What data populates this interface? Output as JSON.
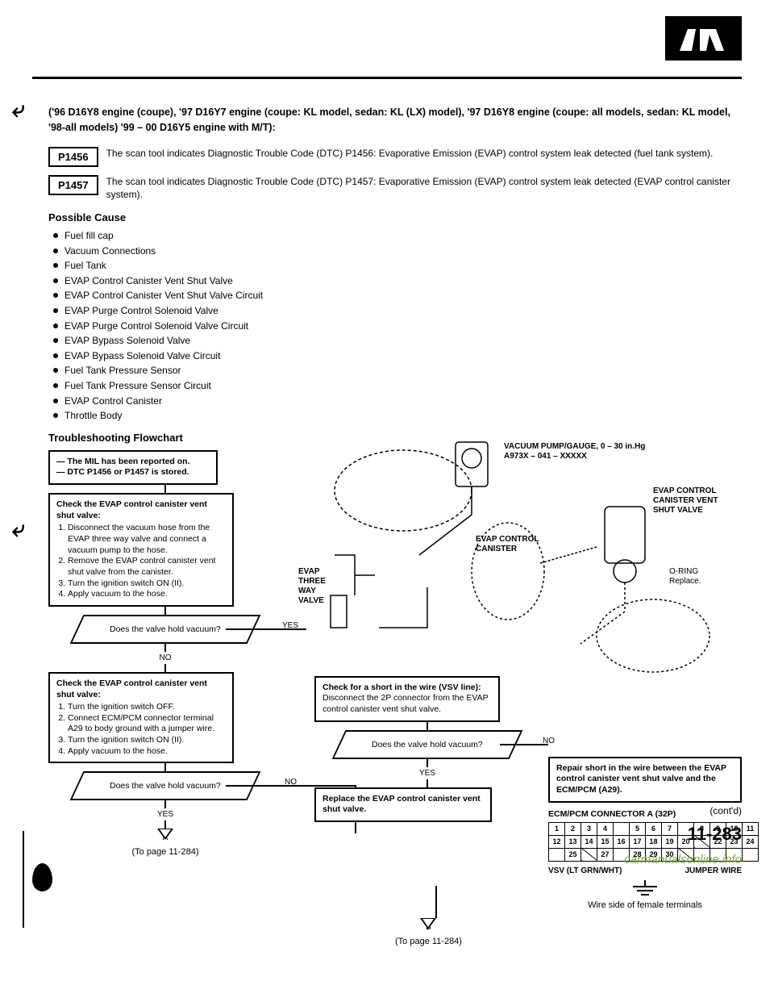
{
  "header": "('96 D16Y8 engine (coupe), '97 D16Y7 engine (coupe: KL model, sedan: KL (LX) model), '97 D16Y8 engine (coupe: all models, sedan: KL model, '98-all models) '99 – 00 D16Y5 engine with M/T):",
  "dtc1": {
    "code": "P1456",
    "desc": "The scan tool indicates Diagnostic Trouble Code (DTC) P1456: Evaporative Emission (EVAP) control system leak detected (fuel tank system)."
  },
  "dtc2": {
    "code": "P1457",
    "desc": "The scan tool indicates Diagnostic Trouble Code (DTC) P1457: Evaporative Emission (EVAP) control system leak detected (EVAP control canister system)."
  },
  "possible_title": "Possible Cause",
  "causes": [
    "Fuel fill cap",
    "Vacuum Connections",
    "Fuel Tank",
    "EVAP Control Canister Vent Shut Valve",
    "EVAP Control Canister Vent Shut Valve Circuit",
    "EVAP Purge Control Solenoid Valve",
    "EVAP Purge Control Solenoid Valve Circuit",
    "EVAP Bypass Solenoid Valve",
    "EVAP Bypass Solenoid Valve Circuit",
    "Fuel Tank Pressure Sensor",
    "Fuel Tank Pressure Sensor Circuit",
    "EVAP Control Canister",
    "Throttle Body"
  ],
  "flow_title": "Troubleshooting Flowchart",
  "box1": {
    "l1": "— The MIL has been reported on.",
    "l2": "— DTC P1456 or P1457 is stored."
  },
  "box2": {
    "title": "Check the EVAP control canister vent shut valve:",
    "s1": "Disconnect the vacuum hose from the EVAP three way valve and connect a vacuum pump to the hose.",
    "s2": "Remove the EVAP control canister vent shut valve from the canister.",
    "s3": "Turn the ignition switch ON (II).",
    "s4": "Apply vacuum to the hose."
  },
  "diamond1": "Does the valve hold vacuum?",
  "yes": "YES",
  "no": "NO",
  "box3": {
    "title": "Check the EVAP control canister vent shut valve:",
    "s1": "Turn the ignition switch OFF.",
    "s2": "Connect ECM/PCM connector terminal A29 to body ground with a jumper wire.",
    "s3": "Turn the ignition switch ON (II).",
    "s4": "Apply vacuum to the hose."
  },
  "diamond2": "Does the valve hold vacuum?",
  "to_page_a": "(To page 11-284)",
  "to_page_b": "(To page 11-284)",
  "box_r1": {
    "title": "Check for a short in the wire (VSV line):",
    "body": "Disconnect the 2P connector from the EVAP control canister vent shut valve."
  },
  "diamond_r": "Does the valve hold vacuum?",
  "box_r2": "Replace the EVAP control canister vent shut valve.",
  "box_rr": "Repair short in the wire between the EVAP control canister vent shut valve and the ECM/PCM (A29).",
  "conn_title": "ECM/PCM CONNECTOR A (32P)",
  "vsv_label": "VSV (LT GRN/WHT)",
  "jumper_label": "JUMPER WIRE",
  "wire_side": "Wire side of female terminals",
  "contd": "(cont'd)",
  "page_num": "11-283",
  "watermark": "carmanualsonline.info",
  "diag": {
    "vacuum": "VACUUM PUMP/GAUGE, 0 – 30 in.Hg A973X – 041 – XXXXX",
    "evap_three": "EVAP THREE WAY VALVE",
    "evap_canister": "EVAP CONTROL CANISTER",
    "evap_shut": "EVAP CONTROL CANISTER VENT SHUT VALVE",
    "oring": "O-RING Replace."
  },
  "conn_rows": {
    "r1": [
      "1",
      "2",
      "3",
      "4",
      "",
      "5",
      "6",
      "7",
      "",
      "8",
      "9",
      "10",
      "11"
    ],
    "r2": [
      "12",
      "13",
      "14",
      "15",
      "16",
      "17",
      "18",
      "19",
      "20",
      "/",
      "22",
      "23",
      "24"
    ],
    "r3": [
      "",
      "25",
      "/",
      "27",
      "",
      "28",
      "29",
      "30",
      "/",
      "",
      "",
      "",
      ""
    ]
  }
}
